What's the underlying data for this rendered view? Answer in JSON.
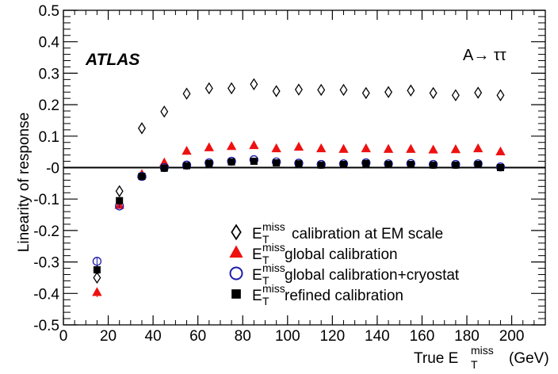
{
  "chart_data": {
    "type": "scatter",
    "title": "",
    "experiment_label": "ATLAS",
    "process_label": "A→ ττ",
    "xlabel": {
      "prefix": "True E",
      "sup": "miss",
      "sub": "T",
      "unit": "(GeV)"
    },
    "ylabel": "Linearity of response",
    "xlim": [
      0,
      215
    ],
    "ylim": [
      -0.5,
      0.5
    ],
    "x_ticks": [
      0,
      20,
      40,
      60,
      80,
      100,
      120,
      140,
      160,
      180,
      200
    ],
    "x_tick_labels": [
      "0",
      "20",
      "40",
      "60",
      "80",
      "100",
      "120",
      "140",
      "160",
      "180",
      "200"
    ],
    "y_ticks": [
      -0.5,
      -0.4,
      -0.3,
      -0.2,
      -0.1,
      0,
      0.1,
      0.2,
      0.3,
      0.4,
      0.5
    ],
    "y_tick_labels": [
      "-0.5",
      "-0.4",
      "-0.3",
      "-0.2",
      "-0.1",
      "-0",
      "0.1",
      "0.2",
      "0.3",
      "0.4",
      "0.5"
    ],
    "reference_line_y": 0,
    "grid": false,
    "legend_position": "bottom-center",
    "x": [
      15,
      25,
      35,
      45,
      55,
      65,
      75,
      85,
      95,
      105,
      115,
      125,
      135,
      145,
      155,
      165,
      175,
      185,
      195
    ],
    "series": [
      {
        "name": "calibration at EM scale",
        "legend_prefix": "E",
        "legend_sup": "miss",
        "legend_sub": "T",
        "marker": "diamond-open",
        "color": "#000000",
        "values": [
          -0.35,
          -0.075,
          0.125,
          0.178,
          0.235,
          0.252,
          0.252,
          0.265,
          0.243,
          0.248,
          0.247,
          0.247,
          0.237,
          0.24,
          0.245,
          0.237,
          0.23,
          0.238,
          0.23
        ],
        "errors": [
          0.012,
          0.008,
          0.006,
          0.004,
          0.003,
          0.003,
          0.003,
          0.003,
          0.003,
          0.003,
          0.003,
          0.003,
          0.003,
          0.003,
          0.003,
          0.003,
          0.003,
          0.003,
          0.003
        ]
      },
      {
        "name": "global calibration",
        "legend_prefix": "E",
        "legend_sup": "miss",
        "legend_sub": "T",
        "marker": "triangle-filled",
        "color": "#ee1111",
        "values": [
          -0.397,
          -0.12,
          -0.022,
          0.015,
          0.052,
          0.063,
          0.067,
          0.07,
          0.06,
          0.065,
          0.06,
          0.058,
          0.06,
          0.058,
          0.058,
          0.056,
          0.057,
          0.06,
          0.05
        ],
        "errors": [
          0.015,
          0.008,
          0.005,
          0.003,
          0.003,
          0.003,
          0.003,
          0.003,
          0.003,
          0.003,
          0.003,
          0.003,
          0.003,
          0.003,
          0.003,
          0.003,
          0.003,
          0.003,
          0.003
        ]
      },
      {
        "name": "global calibration+cryostat",
        "legend_prefix": "E",
        "legend_sup": "miss",
        "legend_sub": "T",
        "marker": "circle-open",
        "color": "#1a1aaa",
        "values": [
          -0.298,
          -0.122,
          -0.028,
          0.0,
          0.008,
          0.015,
          0.02,
          0.025,
          0.018,
          0.014,
          0.01,
          0.012,
          0.015,
          0.012,
          0.013,
          0.01,
          0.01,
          0.012,
          0.002
        ],
        "errors": [
          0.012,
          0.008,
          0.005,
          0.003,
          0.003,
          0.003,
          0.003,
          0.003,
          0.003,
          0.003,
          0.003,
          0.003,
          0.003,
          0.003,
          0.003,
          0.003,
          0.003,
          0.003,
          0.003
        ]
      },
      {
        "name": "refined calibration",
        "legend_prefix": "E",
        "legend_sup": "miss",
        "legend_sub": "T",
        "marker": "square-filled",
        "color": "#000000",
        "values": [
          -0.325,
          -0.105,
          -0.028,
          -0.002,
          0.006,
          0.013,
          0.018,
          0.02,
          0.015,
          0.012,
          0.008,
          0.01,
          0.013,
          0.01,
          0.01,
          0.008,
          0.008,
          0.01,
          0.0
        ],
        "errors": [
          0.014,
          0.008,
          0.005,
          0.003,
          0.003,
          0.003,
          0.003,
          0.003,
          0.003,
          0.003,
          0.003,
          0.003,
          0.003,
          0.003,
          0.003,
          0.003,
          0.003,
          0.003,
          0.003
        ]
      }
    ]
  }
}
